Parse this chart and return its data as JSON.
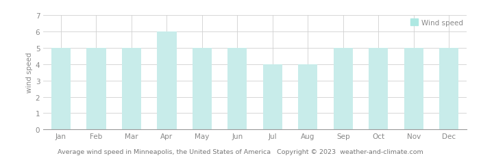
{
  "months": [
    "Jan",
    "Feb",
    "Mar",
    "Apr",
    "May",
    "Jun",
    "Jul",
    "Aug",
    "Sep",
    "Oct",
    "Nov",
    "Dec"
  ],
  "wind_speed": [
    5,
    5,
    5,
    6,
    5,
    5,
    4,
    4,
    5,
    5,
    5,
    5
  ],
  "bar_color": "#c8ecea",
  "bar_edge_color": "#c8ecea",
  "background_color": "#ffffff",
  "grid_color": "#d0d0d0",
  "ylabel": "wind speed",
  "ylim": [
    0,
    7
  ],
  "yticks": [
    0,
    1,
    2,
    3,
    4,
    5,
    6,
    7
  ],
  "legend_label": "Wind speed",
  "legend_color": "#aee8e2",
  "footer_text": "Average wind speed in Minneapolis, the United States of America   Copyright © 2023  weather-and-climate.com",
  "tick_fontsize": 7.5,
  "axis_fontsize": 7.5,
  "legend_fontsize": 7.5,
  "footer_fontsize": 6.8,
  "bar_width": 0.55,
  "tick_color": "#888888",
  "spine_color": "#999999"
}
